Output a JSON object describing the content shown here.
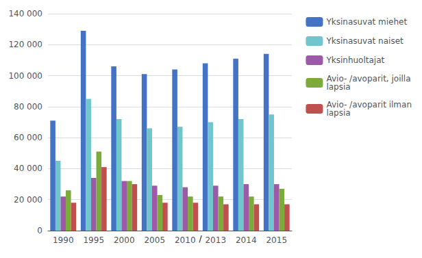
{
  "chart_data": {
    "type": "bar",
    "categories": [
      "1990",
      "1995",
      "2000",
      "2005",
      "2010",
      "2013",
      "2014",
      "2015"
    ],
    "series": [
      {
        "name": "Yksinasuvat miehet",
        "color": "#4472C4",
        "values": [
          71000,
          129000,
          106000,
          101000,
          104000,
          108000,
          111000,
          114000
        ]
      },
      {
        "name": "Yksinasuvat naiset",
        "color": "#70C6CC",
        "values": [
          45000,
          85000,
          72000,
          66000,
          67000,
          70000,
          72000,
          75000
        ]
      },
      {
        "name": "Yksinhuoltajat",
        "color": "#9B59A8",
        "values": [
          22000,
          34000,
          32000,
          29000,
          28000,
          29000,
          30000,
          30000
        ]
      },
      {
        "name": "Avio- /avoparit, joilla\nlapsia",
        "color": "#7CAA3B",
        "values": [
          26000,
          51000,
          32000,
          23000,
          22000,
          22000,
          22000,
          27000
        ]
      },
      {
        "name": "Avio- /avoparit ilman\nlapsia",
        "color": "#C0504D",
        "values": [
          18000,
          41000,
          30000,
          18000,
          18000,
          17000,
          17000,
          17000
        ]
      }
    ],
    "ylim": [
      0,
      140000
    ],
    "yticks": [
      0,
      {
        "value": 20000,
        "label": "20 000"
      },
      {
        "value": 40000,
        "label": "40 000"
      },
      {
        "value": 60000,
        "label": "60 000"
      },
      {
        "value": 80000,
        "label": "80 000"
      },
      {
        "value": 100000,
        "label": "100 000"
      },
      {
        "value": 120000,
        "label": "120 000"
      },
      {
        "value": 140000,
        "label": "140 000"
      }
    ],
    "grid": true,
    "legend": "right",
    "annotations": [
      {
        "text": "/",
        "between": [
          "2010",
          "2013"
        ]
      }
    ]
  }
}
